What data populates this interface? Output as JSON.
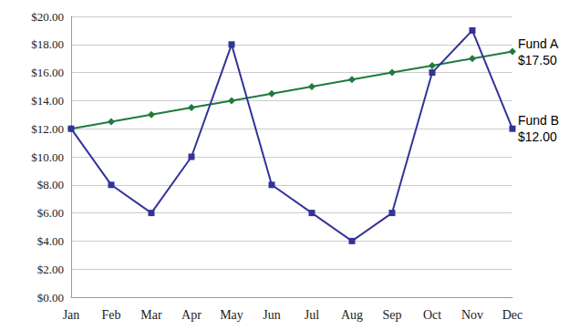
{
  "chart_data": {
    "type": "line",
    "categories": [
      "Jan",
      "Feb",
      "Mar",
      "Apr",
      "May",
      "Jun",
      "Jul",
      "Aug",
      "Sep",
      "Oct",
      "Nov",
      "Dec"
    ],
    "series": [
      {
        "name": "Fund A",
        "color": "#1e7b3c",
        "marker": "diamond",
        "end_label": "$17.50",
        "values": [
          12,
          12.5,
          13,
          13.5,
          14,
          14.5,
          15,
          15.5,
          16,
          16.5,
          17,
          17.5
        ]
      },
      {
        "name": "Fund B",
        "color": "#333399",
        "marker": "square",
        "end_label": "$12.00",
        "values": [
          12,
          8,
          6,
          10,
          18,
          8,
          6,
          4,
          6,
          16,
          19,
          12
        ]
      }
    ],
    "ylim": [
      0,
      20
    ],
    "yticks": [
      {
        "value": 0,
        "label": "$0.00"
      },
      {
        "value": 2,
        "label": "$2.00"
      },
      {
        "value": 4,
        "label": "$4.00"
      },
      {
        "value": 6,
        "label": "$6.00"
      },
      {
        "value": 8,
        "label": "$8.00"
      },
      {
        "value": 10,
        "label": "$10.00"
      },
      {
        "value": 12,
        "label": "$12.00"
      },
      {
        "value": 14,
        "label": "$14.00"
      },
      {
        "value": 16,
        "label": "$16.00"
      },
      {
        "value": 18,
        "label": "$18.00"
      },
      {
        "value": 20,
        "label": "$20.00"
      }
    ],
    "grid": true
  }
}
